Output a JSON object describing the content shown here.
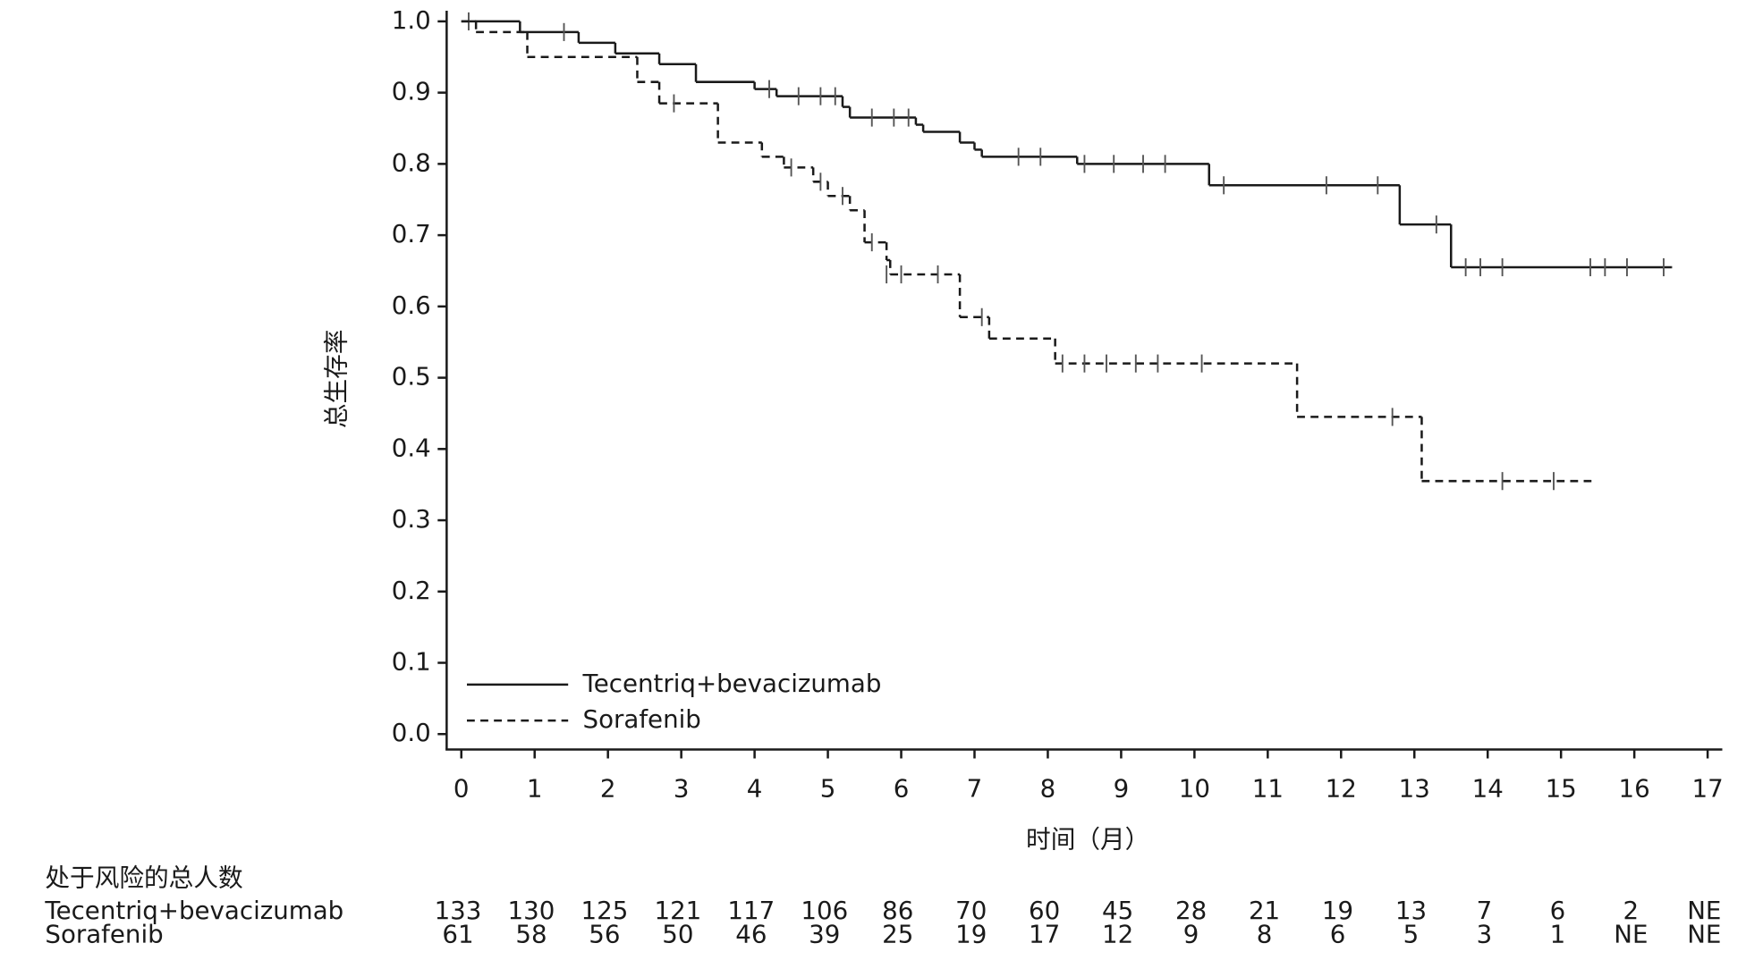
{
  "chart_data": {
    "type": "step",
    "y_label": "总生存率",
    "x_label": "时间（月）",
    "xlim": [
      -0.2,
      17.2
    ],
    "ylim": [
      -0.02,
      1.015
    ],
    "xticks": [
      0,
      1,
      2,
      3,
      4,
      5,
      6,
      7,
      8,
      9,
      10,
      11,
      12,
      13,
      14,
      15,
      16,
      17
    ],
    "yticks": [
      {
        "value": 1,
        "label": "1.0"
      },
      0.9,
      0.8,
      0.7,
      0.6,
      0.5,
      0.4,
      0.3,
      0.2,
      0.1,
      {
        "value": 0,
        "label": "0.0"
      }
    ],
    "legend": "lower left",
    "series": [
      {
        "name": "Tecentriq+bevacizumab",
        "color": "#1a1a1a",
        "line_style": "solid",
        "x": [
          0,
          0.8,
          1.6,
          2.1,
          2.7,
          3.2,
          4.0,
          4.3,
          5.2,
          5.3,
          6.2,
          6.3,
          6.8,
          7.0,
          7.1,
          8.4,
          10.2,
          12.8,
          13.5,
          16.5
        ],
        "values": [
          1.0,
          0.985,
          0.97,
          0.955,
          0.94,
          0.915,
          0.905,
          0.895,
          0.88,
          0.865,
          0.855,
          0.845,
          0.83,
          0.82,
          0.81,
          0.8,
          0.77,
          0.715,
          0.655,
          0.655
        ],
        "censored": {
          "x": [
            0.1,
            1.4,
            4.2,
            4.6,
            4.9,
            5.1,
            5.6,
            5.9,
            6.1,
            7.6,
            7.9,
            8.5,
            8.9,
            9.3,
            9.6,
            10.4,
            11.8,
            12.5,
            13.3,
            13.7,
            13.9,
            14.2,
            15.4,
            15.6,
            15.9,
            16.4
          ],
          "values": [
            1.0,
            0.985,
            0.905,
            0.895,
            0.895,
            0.895,
            0.865,
            0.865,
            0.865,
            0.81,
            0.81,
            0.8,
            0.8,
            0.8,
            0.8,
            0.77,
            0.77,
            0.77,
            0.715,
            0.655,
            0.655,
            0.655,
            0.655,
            0.655,
            0.655,
            0.655
          ]
        }
      },
      {
        "name": "Sorafenib",
        "color": "#1a1a1a",
        "line_style": "dashed",
        "x": [
          0,
          0.2,
          0.9,
          2.4,
          2.7,
          3.5,
          4.1,
          4.4,
          4.8,
          5.0,
          5.3,
          5.5,
          5.8,
          5.85,
          6.8,
          7.2,
          8.1,
          11.4,
          13.1,
          15.4
        ],
        "values": [
          1.0,
          0.985,
          0.95,
          0.915,
          0.885,
          0.83,
          0.81,
          0.795,
          0.775,
          0.755,
          0.735,
          0.69,
          0.665,
          0.645,
          0.585,
          0.555,
          0.52,
          0.445,
          0.355,
          0.355
        ],
        "censored": {
          "x": [
            2.9,
            4.5,
            4.9,
            5.2,
            5.6,
            5.8,
            6.0,
            6.5,
            7.1,
            8.2,
            8.5,
            8.8,
            9.2,
            9.5,
            10.1,
            12.7,
            14.2,
            14.9
          ],
          "values": [
            0.885,
            0.795,
            0.775,
            0.755,
            0.69,
            0.645,
            0.645,
            0.645,
            0.585,
            0.52,
            0.52,
            0.52,
            0.52,
            0.52,
            0.52,
            0.445,
            0.355,
            0.355
          ]
        }
      }
    ],
    "risk_table": {
      "title": "处于风险的总人数",
      "rows": [
        {
          "name": "Tecentriq+bevacizumab",
          "values": [
            133,
            130,
            125,
            121,
            117,
            106,
            86,
            70,
            60,
            45,
            28,
            21,
            19,
            13,
            7,
            6,
            2,
            "NE"
          ]
        },
        {
          "name": "Sorafenib",
          "values": [
            61,
            58,
            56,
            50,
            46,
            39,
            25,
            19,
            17,
            12,
            9,
            8,
            6,
            5,
            3,
            1,
            "NE",
            "NE"
          ]
        }
      ]
    }
  }
}
